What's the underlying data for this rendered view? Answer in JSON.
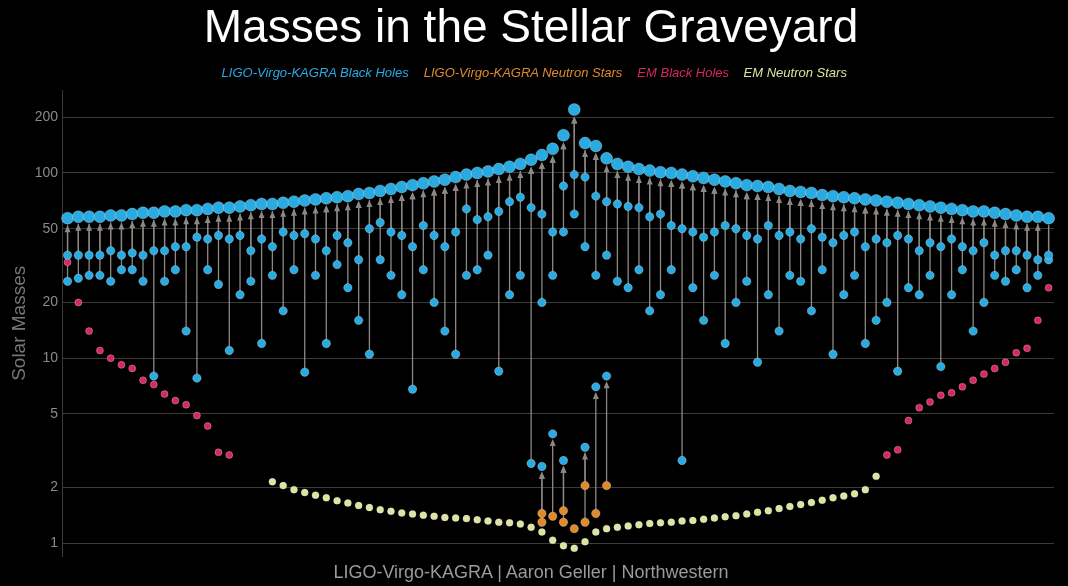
{
  "chart_data": {
    "type": "scatter",
    "title": "Masses in the Stellar Graveyard",
    "ylabel": "Solar Masses",
    "annotations": [
      "LIGO-Virgo-KAGRA | Aaron Geller | Northwestern"
    ],
    "categories": [
      null,
      null,
      null,
      null,
      null,
      null,
      null,
      null,
      null,
      null,
      null,
      null,
      null,
      null,
      null,
      null,
      null,
      null,
      null,
      null,
      null,
      null,
      null,
      null,
      null,
      null,
      null,
      null,
      null,
      null,
      null,
      null,
      null,
      null,
      null,
      null,
      null,
      null,
      null,
      null,
      null,
      null,
      null,
      null,
      null,
      null,
      null,
      null,
      null,
      null,
      null,
      null,
      null,
      null,
      null,
      null,
      null,
      null,
      null,
      null,
      null,
      null,
      null,
      null,
      null,
      null,
      null,
      null,
      null,
      null,
      null,
      null,
      null,
      null,
      null,
      null,
      null,
      null,
      null,
      null,
      null,
      null,
      null,
      null,
      null,
      null,
      null,
      null,
      null,
      null,
      null,
      null
    ],
    "series": [
      {
        "name": "LIGO-Virgo-KAGRA Black Holes",
        "color": "#29abe2",
        "values": [
          57,
          58,
          58,
          58,
          59,
          59,
          60,
          61,
          61,
          62,
          62,
          63,
          63,
          64,
          65,
          65,
          66,
          67,
          68,
          68,
          69,
          70,
          71,
          72,
          73,
          74,
          75,
          77,
          78,
          80,
          82,
          84,
          86,
          88,
          90,
          92,
          95,
          98,
          100,
          102,
          105,
          108,
          112,
          118,
          125,
          135,
          160,
          220,
          145,
          140,
          120,
          112,
          108,
          105,
          103,
          101,
          100,
          98,
          96,
          94,
          92,
          90,
          88,
          86,
          85,
          84,
          82,
          80,
          79,
          78,
          76,
          75,
          74,
          73,
          72,
          71,
          70,
          69,
          68,
          67,
          66,
          65,
          64,
          63,
          62,
          62,
          61,
          60,
          59,
          58,
          58,
          57
        ]
      },
      {
        "color": "#29abe2",
        "values": [
          36,
          36,
          36,
          36,
          38,
          36,
          37,
          36,
          38,
          38,
          40,
          40,
          45,
          44,
          46,
          44,
          46,
          38,
          44,
          40,
          48,
          46,
          47,
          44,
          38,
          46,
          42,
          34,
          50,
          54,
          48,
          46,
          40,
          52,
          46,
          40,
          48,
          64,
          56,
          58,
          62,
          70,
          74,
          65,
          60,
          48,
          85,
          98,
          95,
          75,
          70,
          68,
          66,
          65,
          58,
          60,
          52,
          50,
          48,
          45,
          48,
          52,
          50,
          46,
          44,
          52,
          46,
          48,
          44,
          50,
          45,
          42,
          46,
          48,
          40,
          44,
          42,
          46,
          44,
          38,
          42,
          40,
          44,
          40,
          38,
          42,
          36,
          38,
          38,
          36,
          34,
          36
        ]
      },
      {
        "color": "#29abe2",
        "values": [
          26,
          27,
          28,
          28,
          26,
          30,
          30,
          26,
          8,
          26,
          30,
          14,
          7.8,
          30,
          25,
          11,
          22,
          26,
          12,
          28,
          18,
          30,
          8.4,
          28,
          12,
          32,
          24,
          16,
          10.5,
          34,
          28,
          22,
          6.8,
          30,
          20,
          14,
          10.5,
          28,
          30,
          36,
          8.5,
          22,
          28,
          2.7,
          20,
          28,
          48,
          60,
          40,
          28,
          36,
          26,
          24,
          30,
          18,
          22,
          30,
          2.8,
          24,
          16,
          28,
          12,
          20,
          26,
          9.5,
          22,
          14,
          28,
          26,
          18,
          30,
          10.5,
          22,
          28,
          12,
          16,
          20,
          8.5,
          24,
          22,
          28,
          9,
          22,
          30,
          14,
          20,
          28,
          26,
          30,
          24,
          28,
          34
        ]
      },
      {
        "color": "#29abe2",
        "values": [
          null,
          null,
          null,
          null,
          null,
          null,
          null,
          null,
          null,
          null,
          null,
          null,
          null,
          null,
          null,
          null,
          null,
          null,
          null,
          null,
          null,
          null,
          null,
          null,
          null,
          null,
          null,
          null,
          null,
          null,
          null,
          null,
          null,
          null,
          null,
          null,
          null,
          null,
          null,
          null,
          null,
          null,
          null,
          null,
          2.6,
          3.9,
          2.8,
          null,
          3.3,
          7,
          8,
          null,
          null,
          null,
          null,
          null,
          null,
          null,
          null,
          null,
          null,
          null,
          null,
          null,
          null,
          null,
          null,
          null,
          null,
          null,
          null,
          null,
          null,
          null,
          null,
          null,
          null,
          null,
          null,
          null,
          null,
          null,
          null,
          null,
          null,
          null,
          null,
          null,
          null,
          null,
          null,
          null
        ]
      },
      {
        "name": "LIGO-Virgo-KAGRA Neutron Stars",
        "color": "#e08a2c",
        "values": [
          null,
          null,
          null,
          null,
          null,
          null,
          null,
          null,
          null,
          null,
          null,
          null,
          null,
          null,
          null,
          null,
          null,
          null,
          null,
          null,
          null,
          null,
          null,
          null,
          null,
          null,
          null,
          null,
          null,
          null,
          null,
          null,
          null,
          null,
          null,
          null,
          null,
          null,
          null,
          null,
          null,
          null,
          null,
          null,
          1.45,
          1.4,
          1.5,
          1.2,
          2.05,
          1.45,
          2.05,
          null,
          null,
          null,
          null,
          null,
          null,
          null,
          null,
          null,
          null,
          null,
          null,
          null,
          null,
          null,
          null,
          null,
          null,
          null,
          null,
          null,
          null,
          null,
          null,
          null,
          null,
          null,
          null,
          null,
          null,
          null,
          null,
          null,
          null,
          null,
          null,
          null,
          null,
          null,
          null,
          null
        ]
      },
      {
        "color": "#e08a2c",
        "values": [
          null,
          null,
          null,
          null,
          null,
          null,
          null,
          null,
          null,
          null,
          null,
          null,
          null,
          null,
          null,
          null,
          null,
          null,
          null,
          null,
          null,
          null,
          null,
          null,
          null,
          null,
          null,
          null,
          null,
          null,
          null,
          null,
          null,
          null,
          null,
          null,
          null,
          null,
          null,
          null,
          null,
          null,
          null,
          null,
          1.3,
          null,
          1.3,
          null,
          1.3,
          null,
          null,
          null,
          null,
          null,
          null,
          null,
          null,
          null,
          null,
          null,
          null,
          null,
          null,
          null,
          null,
          null,
          null,
          null,
          null,
          null,
          null,
          null,
          null,
          null,
          null,
          null,
          null,
          null,
          null,
          null,
          null,
          null,
          null,
          null,
          null,
          null,
          null,
          null,
          null,
          null,
          null,
          null
        ]
      },
      {
        "name": "EM Black Holes",
        "color": "#d6285f",
        "values": [
          33,
          20,
          14,
          11,
          10,
          9.2,
          8.8,
          7.6,
          7.2,
          6.4,
          5.9,
          5.6,
          4.9,
          4.3,
          3.1,
          3.0,
          null,
          null,
          null,
          null,
          null,
          null,
          null,
          null,
          null,
          null,
          null,
          null,
          null,
          null,
          null,
          null,
          null,
          null,
          null,
          null,
          null,
          null,
          null,
          null,
          null,
          null,
          null,
          null,
          null,
          null,
          null,
          null,
          null,
          null,
          null,
          null,
          null,
          null,
          null,
          null,
          null,
          null,
          null,
          null,
          null,
          null,
          null,
          null,
          null,
          null,
          null,
          null,
          null,
          null,
          null,
          null,
          null,
          null,
          null,
          null,
          3.0,
          3.2,
          4.6,
          5.4,
          5.8,
          6.3,
          6.5,
          7.0,
          7.6,
          8.2,
          8.8,
          9.5,
          10.7,
          11.3,
          16,
          24
        ]
      },
      {
        "name": "EM Neutron Stars",
        "color": "#dfe3a0",
        "values": [
          null,
          null,
          null,
          null,
          null,
          null,
          null,
          null,
          null,
          null,
          null,
          null,
          null,
          null,
          null,
          null,
          null,
          null,
          null,
          2.15,
          2.05,
          1.95,
          1.88,
          1.82,
          1.76,
          1.7,
          1.65,
          1.6,
          1.56,
          1.52,
          1.49,
          1.46,
          1.44,
          1.42,
          1.4,
          1.38,
          1.37,
          1.36,
          1.34,
          1.32,
          1.3,
          1.29,
          1.27,
          1.22,
          1.15,
          1.04,
          0.97,
          0.94,
          1.02,
          1.15,
          1.2,
          1.22,
          1.24,
          1.26,
          1.28,
          1.29,
          1.3,
          1.32,
          1.33,
          1.35,
          1.37,
          1.39,
          1.41,
          1.44,
          1.47,
          1.5,
          1.54,
          1.58,
          1.62,
          1.66,
          1.71,
          1.76,
          1.8,
          1.85,
          1.95,
          2.3,
          null,
          null,
          null,
          null,
          null,
          null,
          null,
          null,
          null,
          null,
          null,
          null,
          null,
          null,
          null,
          null
        ]
      }
    ],
    "ylim": [
      0.85,
      280
    ],
    "yticks": [
      1,
      2,
      5,
      10,
      20,
      50,
      100,
      200
    ],
    "log": "y",
    "grid": "y",
    "legend": "top",
    "tick_labels": "y",
    "marker": "circle"
  }
}
